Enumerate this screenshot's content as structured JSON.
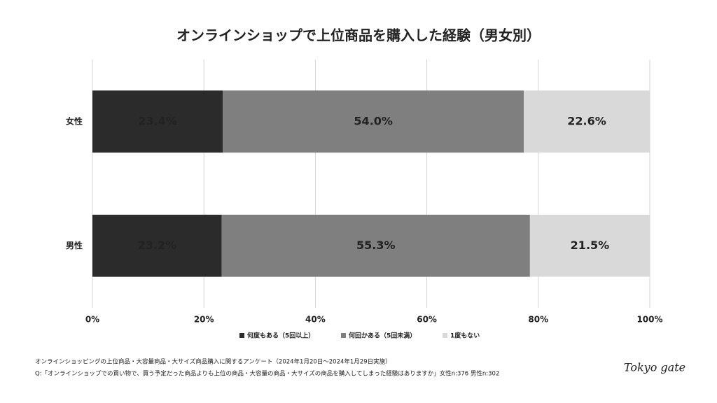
{
  "chart_data": {
    "type": "stacked_barh",
    "title": "オンラインショップで上位商品を購入した経験（男女別）",
    "categories": [
      "女性",
      "男性"
    ],
    "series": [
      {
        "name": "何度もある（5回以上）",
        "color": "#2b2b2b",
        "values": [
          23.4,
          23.2
        ],
        "value_labels": [
          "23.4%",
          "23.2%"
        ]
      },
      {
        "name": "何回かある（5回未満）",
        "color": "#7f7f7f",
        "values": [
          54.0,
          55.3
        ],
        "value_labels": [
          "54.0%",
          "55.3%"
        ]
      },
      {
        "name": "1度もない",
        "color": "#d9d9d9",
        "values": [
          22.6,
          21.5
        ],
        "value_labels": [
          "22.6%",
          "21.5%"
        ]
      }
    ],
    "xlim": [
      0,
      100
    ],
    "xticks": [
      {
        "value": 0,
        "label": "0%"
      },
      {
        "value": 20,
        "label": "20%"
      },
      {
        "value": 40,
        "label": "40%"
      },
      {
        "value": 60,
        "label": "60%"
      },
      {
        "value": 80,
        "label": "80%"
      },
      {
        "value": 100,
        "label": "100%"
      }
    ],
    "grid": true,
    "legend": "bottom",
    "notes": [
      "オンラインショッピングの上位商品・大容量商品・大サイズ商品購入に関するアンケート（2024年1月20日〜2024年1月29日実施）",
      "Q:「オンラインショップでの買い物で、買う予定だった商品よりも上位の商品・大容量の商品・大サイズの商品を購入してしまった経験はありますか」女性n:376 男性n:302"
    ],
    "logo": "Tokyo gate"
  }
}
